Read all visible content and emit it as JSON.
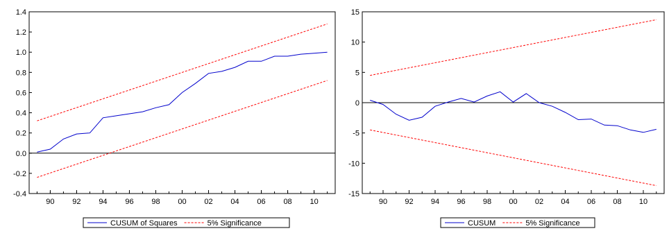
{
  "chart_data": [
    {
      "type": "line",
      "ylim": [
        -0.4,
        1.4
      ],
      "yticks": [
        -0.4,
        -0.2,
        0.0,
        0.2,
        0.4,
        0.6,
        0.8,
        1.0,
        1.2,
        1.4
      ],
      "ytick_labels": [
        "-0.4",
        "-0.2",
        "0.0",
        "0.2",
        "0.4",
        "0.6",
        "0.8",
        "1.0",
        "1.2",
        "1.4"
      ],
      "xlim": [
        1988.4,
        2011.6
      ],
      "xticks": [
        1990,
        1992,
        1994,
        1996,
        1998,
        2000,
        2002,
        2004,
        2006,
        2008,
        2010
      ],
      "xtick_labels": [
        "90",
        "92",
        "94",
        "96",
        "98",
        "00",
        "02",
        "04",
        "06",
        "08",
        "10"
      ],
      "zero_line": 0,
      "grid": false,
      "legend_position": "bottom-center",
      "series": [
        {
          "name": "CUSUM of Squares",
          "color": "#0000cc",
          "style": "solid",
          "x": [
            1989,
            1990,
            1991,
            1992,
            1993,
            1994,
            1995,
            1996,
            1997,
            1998,
            1999,
            2000,
            2001,
            2002,
            2003,
            2004,
            2005,
            2006,
            2007,
            2008,
            2009,
            2010,
            2011
          ],
          "y": [
            0.01,
            0.04,
            0.14,
            0.19,
            0.2,
            0.35,
            0.37,
            0.39,
            0.41,
            0.45,
            0.48,
            0.6,
            0.69,
            0.79,
            0.81,
            0.85,
            0.91,
            0.91,
            0.96,
            0.96,
            0.98,
            0.99,
            1.0
          ]
        },
        {
          "name": "5% Significance",
          "color": "#ff0000",
          "style": "dashed",
          "x": [
            1989,
            2011
          ],
          "y": [
            0.32,
            1.28
          ]
        },
        {
          "name": "",
          "color": "#ff0000",
          "style": "dashed",
          "x": [
            1989,
            2011
          ],
          "y": [
            -0.24,
            0.72
          ]
        }
      ]
    },
    {
      "type": "line",
      "ylim": [
        -15,
        15
      ],
      "yticks": [
        -15,
        -10,
        -5,
        0,
        5,
        10,
        15
      ],
      "ytick_labels": [
        "-15",
        "-10",
        "-5",
        "0",
        "5",
        "10",
        "15"
      ],
      "xlim": [
        1988.4,
        2011.6
      ],
      "xticks": [
        1990,
        1992,
        1994,
        1996,
        1998,
        2000,
        2002,
        2004,
        2006,
        2008,
        2010
      ],
      "xtick_labels": [
        "90",
        "92",
        "94",
        "96",
        "98",
        "00",
        "02",
        "04",
        "06",
        "08",
        "10"
      ],
      "zero_line": 0,
      "grid": false,
      "legend_position": "bottom-center",
      "series": [
        {
          "name": "CUSUM",
          "color": "#0000cc",
          "style": "solid",
          "x": [
            1989,
            1990,
            1991,
            1992,
            1993,
            1994,
            1995,
            1996,
            1997,
            1998,
            1999,
            2000,
            2001,
            2002,
            2003,
            2004,
            2005,
            2006,
            2007,
            2008,
            2009,
            2010,
            2011
          ],
          "y": [
            0.4,
            -0.3,
            -1.9,
            -2.9,
            -2.4,
            -0.6,
            0.1,
            0.7,
            0.1,
            1.1,
            1.8,
            0.1,
            1.5,
            0.0,
            -0.6,
            -1.6,
            -2.8,
            -2.7,
            -3.7,
            -3.8,
            -4.5,
            -4.9,
            -4.4
          ]
        },
        {
          "name": "5% Significance",
          "color": "#ff0000",
          "style": "dashed",
          "x": [
            1989,
            2011
          ],
          "y": [
            4.5,
            13.7
          ]
        },
        {
          "name": "",
          "color": "#ff0000",
          "style": "dashed",
          "x": [
            1989,
            2011
          ],
          "y": [
            -4.5,
            -13.7
          ]
        }
      ]
    }
  ]
}
